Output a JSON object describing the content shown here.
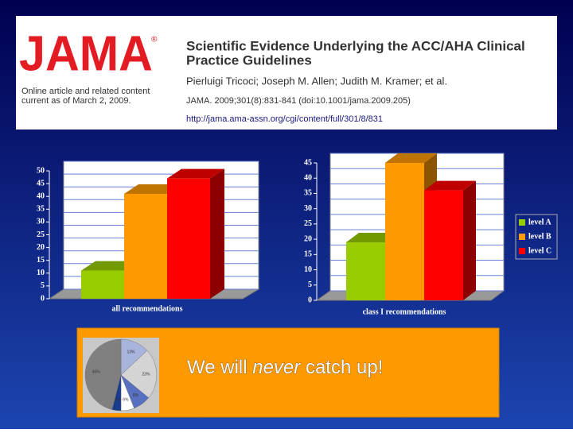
{
  "header": {
    "logo": "JAMA",
    "registered": "®",
    "note_line1": "Online article and related content",
    "note_line2": "current as of March 2, 2009.",
    "title_line1": "Scientific Evidence Underlying the ACC/AHA Clinical",
    "title_line2": "Practice Guidelines",
    "authors": "Pierluigi Tricoci; Joseph M. Allen; Judith M. Kramer; et al.",
    "citation": "JAMA. 2009;301(8):831-841 (doi:10.1001/jama.2009.205)",
    "url": "http://jama.ama-assn.org/cgi/content/full/301/8/831"
  },
  "chart_data": [
    {
      "type": "bar",
      "x_label": "all recommendations",
      "values": [
        11,
        41,
        47
      ],
      "colors": [
        "#99cc00",
        "#ff9900",
        "#ff0000"
      ],
      "ylim": [
        0,
        50
      ],
      "yticks": [
        0,
        5,
        10,
        15,
        20,
        25,
        30,
        35,
        40,
        45,
        50
      ]
    },
    {
      "type": "bar",
      "x_label": "class I recommendations",
      "values": [
        19,
        45,
        36
      ],
      "colors": [
        "#99cc00",
        "#ff9900",
        "#ff0000"
      ],
      "ylim": [
        0,
        45
      ],
      "yticks": [
        0,
        5,
        10,
        15,
        20,
        25,
        30,
        35,
        40,
        45
      ],
      "legend_labels": [
        "level A",
        "level B",
        "level C"
      ],
      "legend": "right"
    },
    {
      "type": "pie",
      "values": [
        13,
        23,
        8,
        6,
        4,
        46
      ],
      "value_labels": [
        "13%",
        "23%",
        "8%",
        "6%",
        "4%",
        "46%"
      ],
      "colors": [
        "#a8b4dc",
        "#d4d4d4",
        "#5870c0",
        "#ffffff",
        "#1a3c8c",
        "#808080"
      ]
    }
  ],
  "caption": {
    "before": "We will ",
    "emphasis": "never",
    "after": " catch up!"
  }
}
